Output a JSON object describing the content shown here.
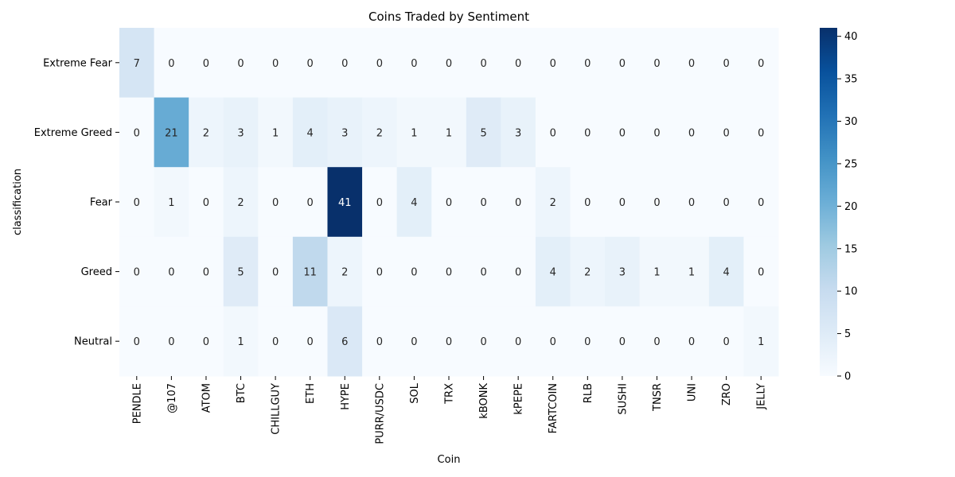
{
  "chart_data": {
    "type": "heatmap",
    "title": "Coins Traded by Sentiment",
    "xlabel": "Coin",
    "ylabel": "classification",
    "x_categories": [
      "PENDLE",
      "@107",
      "ATOM",
      "BTC",
      "CHILLGUY",
      "ETH",
      "HYPE",
      "PURR/USDC",
      "SOL",
      "TRX",
      "kBONK",
      "kPEPE",
      "FARTCOIN",
      "RLB",
      "SUSHI",
      "TNSR",
      "UNI",
      "ZRO",
      "JELLY"
    ],
    "y_categories": [
      "Extreme Fear",
      "Extreme Greed",
      "Fear",
      "Greed",
      "Neutral"
    ],
    "values": [
      [
        7,
        0,
        0,
        0,
        0,
        0,
        0,
        0,
        0,
        0,
        0,
        0,
        0,
        0,
        0,
        0,
        0,
        0,
        0
      ],
      [
        0,
        21,
        2,
        3,
        1,
        4,
        3,
        2,
        1,
        1,
        5,
        3,
        0,
        0,
        0,
        0,
        0,
        0,
        0
      ],
      [
        0,
        1,
        0,
        2,
        0,
        0,
        41,
        0,
        4,
        0,
        0,
        0,
        2,
        0,
        0,
        0,
        0,
        0,
        0
      ],
      [
        0,
        0,
        0,
        5,
        0,
        11,
        2,
        0,
        0,
        0,
        0,
        0,
        4,
        2,
        3,
        1,
        1,
        4,
        0
      ],
      [
        0,
        0,
        0,
        1,
        0,
        0,
        6,
        0,
        0,
        0,
        0,
        0,
        0,
        0,
        0,
        0,
        0,
        0,
        1
      ]
    ],
    "colormap": "Blues",
    "vmin": 0,
    "vmax": 41,
    "colorbar_ticks": [
      0,
      5,
      10,
      15,
      20,
      25,
      30,
      35,
      40
    ],
    "annotated": true
  }
}
